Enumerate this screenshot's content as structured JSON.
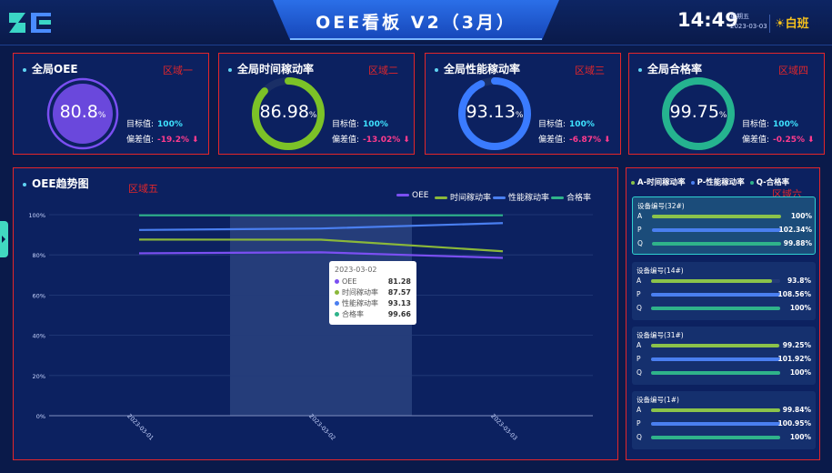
{
  "header": {
    "title": "OEE看板  V2（3月）",
    "clock": "14:49",
    "weekday": "星期五",
    "date": "2023-03-03",
    "shift": "白班",
    "shift_icon": "sun-icon",
    "logo": "company-logo"
  },
  "kpis": [
    {
      "title": "全局OEE",
      "zone": "区域一",
      "value": "80.8",
      "unit": "%",
      "fraction": 0.808,
      "target_label": "目标值:",
      "target": "100%",
      "dev_label": "偏差值:",
      "deviation": "-19.2%",
      "color": "#7b4ff2",
      "ring_style": "fill"
    },
    {
      "title": "全局时间稼动率",
      "zone": "区域二",
      "value": "86.98",
      "unit": "%",
      "fraction": 0.8698,
      "target_label": "目标值:",
      "target": "100%",
      "dev_label": "偏差值:",
      "deviation": "-13.02%",
      "color": "#7cc227",
      "ring_style": "arc"
    },
    {
      "title": "全局性能稼动率",
      "zone": "区域三",
      "value": "93.13",
      "unit": "%",
      "fraction": 0.9313,
      "target_label": "目标值:",
      "target": "100%",
      "dev_label": "偏差值:",
      "deviation": "-6.87%",
      "color": "#3a7bff",
      "ring_style": "arc"
    },
    {
      "title": "全局合格率",
      "zone": "区域四",
      "value": "99.75",
      "unit": "%",
      "fraction": 0.9975,
      "target_label": "目标值:",
      "target": "100%",
      "dev_label": "偏差值:",
      "deviation": "-0.25%",
      "color": "#25b38f",
      "ring_style": "arc"
    }
  ],
  "trend": {
    "title": "OEE趋势图",
    "zone": "区域五",
    "tooltip": {
      "date": "2023-03-02",
      "rows": [
        {
          "name": "OEE",
          "value": "81.28",
          "color": "#7b4ff2"
        },
        {
          "name": "时间稼动率",
          "value": "87.57",
          "color": "#8bb83a"
        },
        {
          "name": "性能稼动率",
          "value": "93.13",
          "color": "#4a7ff0"
        },
        {
          "name": "合格率",
          "value": "99.66",
          "color": "#2fb38a"
        }
      ]
    }
  },
  "chart_data": {
    "type": "line",
    "title": "OEE趋势图",
    "categories": [
      "2023-03-01",
      "2023-03-02",
      "2023-03-03"
    ],
    "yticks": [
      "0%",
      "20%",
      "40%",
      "60%",
      "80%",
      "100%"
    ],
    "ylim": [
      0,
      100
    ],
    "legend_position": "top-right",
    "highlight_category": "2023-03-02",
    "series": [
      {
        "name": "OEE",
        "color": "#7b4ff2",
        "values": [
          80.8,
          81.28,
          78.5
        ]
      },
      {
        "name": "时间稼动率",
        "color": "#8bb83a",
        "values": [
          87.6,
          87.57,
          81.8
        ]
      },
      {
        "name": "性能稼动率",
        "color": "#4a7ff0",
        "values": [
          92.4,
          93.13,
          95.8
        ]
      },
      {
        "name": "合格率",
        "color": "#2fb38a",
        "values": [
          99.7,
          99.66,
          99.7
        ]
      }
    ]
  },
  "devices": {
    "zone": "区域六",
    "legend": [
      {
        "label": "A-时间稼动率",
        "color": "#8bc34a"
      },
      {
        "label": "P-性能稼动率",
        "color": "#4a7ff0"
      },
      {
        "label": "Q-合格率",
        "color": "#2fb38a"
      }
    ],
    "colors": {
      "A": "#8bc34a",
      "P": "#4a7ff0",
      "Q": "#2fb38a"
    },
    "items": [
      {
        "name": "设备编号(32#)",
        "active": true,
        "rows": [
          {
            "label": "A",
            "value": "100%",
            "fraction": 1.0
          },
          {
            "label": "P",
            "value": "102.34%",
            "fraction": 1.0
          },
          {
            "label": "Q",
            "value": "99.88%",
            "fraction": 0.9988
          }
        ]
      },
      {
        "name": "设备编号(14#)",
        "active": false,
        "rows": [
          {
            "label": "A",
            "value": "93.8%",
            "fraction": 0.938
          },
          {
            "label": "P",
            "value": "108.56%",
            "fraction": 1.0
          },
          {
            "label": "Q",
            "value": "100%",
            "fraction": 1.0
          }
        ]
      },
      {
        "name": "设备编号(31#)",
        "active": false,
        "rows": [
          {
            "label": "A",
            "value": "99.25%",
            "fraction": 0.9925
          },
          {
            "label": "P",
            "value": "101.92%",
            "fraction": 1.0
          },
          {
            "label": "Q",
            "value": "100%",
            "fraction": 1.0
          }
        ]
      },
      {
        "name": "设备编号(1#)",
        "active": false,
        "rows": [
          {
            "label": "A",
            "value": "99.84%",
            "fraction": 0.9984
          },
          {
            "label": "P",
            "value": "100.95%",
            "fraction": 1.0
          },
          {
            "label": "Q",
            "value": "100%",
            "fraction": 1.0
          }
        ]
      }
    ]
  }
}
